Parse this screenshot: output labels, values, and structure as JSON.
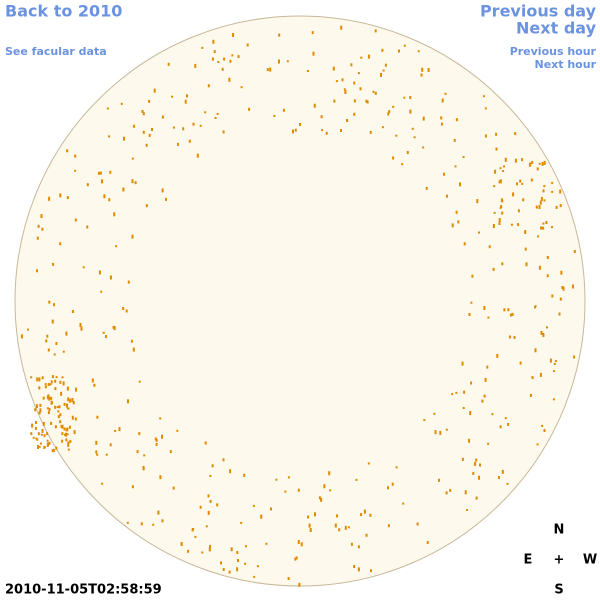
{
  "links": {
    "back": "Back to 2010",
    "facular": "See facular data",
    "previous_day": "Previous day",
    "next_day": "Next day",
    "previous_hour": "Previous hour",
    "next_hour": "Next hour"
  },
  "timestamp": "2010-11-05T02:58:59",
  "compass": {
    "north": "N",
    "east": "E",
    "center": "+",
    "west": "W",
    "south": "S"
  }
}
